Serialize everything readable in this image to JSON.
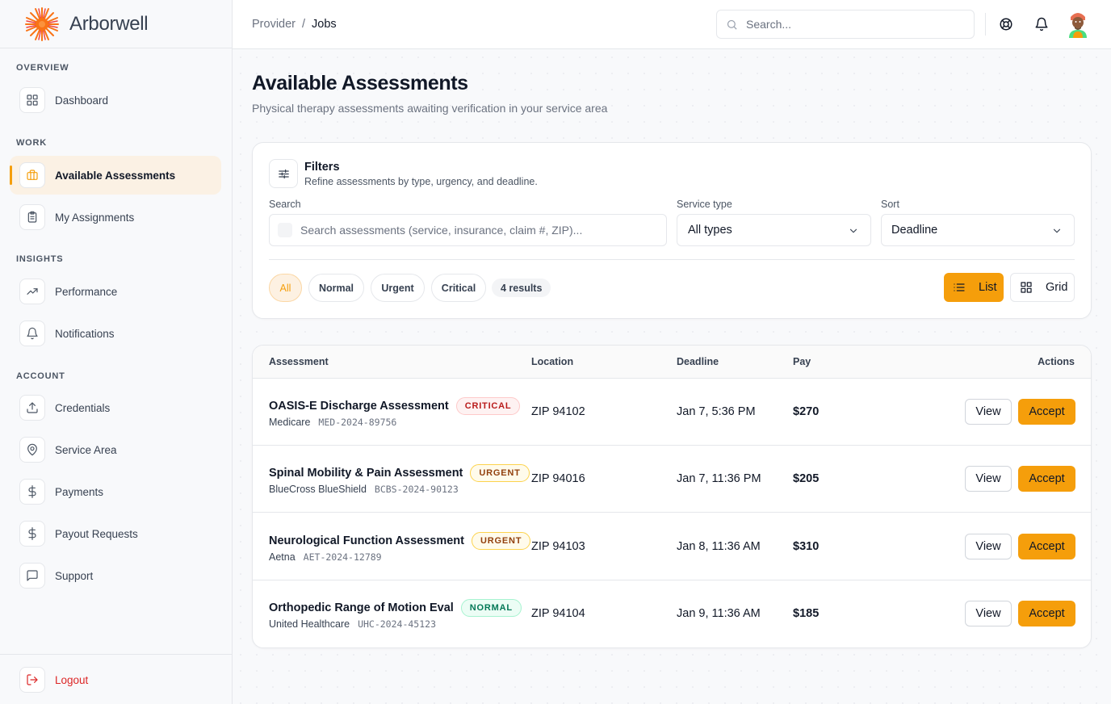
{
  "brand": {
    "name": "Arborwell"
  },
  "sidebar": {
    "sections": [
      "OVERVIEW",
      "WORK",
      "INSIGHTS",
      "ACCOUNT"
    ],
    "items": [
      {
        "label": "Dashboard",
        "icon": "grid-icon"
      },
      {
        "label": "Available Assessments",
        "icon": "briefcase-icon",
        "active": true
      },
      {
        "label": "My Assignments",
        "icon": "clipboard-icon"
      },
      {
        "label": "Performance",
        "icon": "trending-up-icon"
      },
      {
        "label": "Notifications",
        "icon": "bell-icon"
      },
      {
        "label": "Credentials",
        "icon": "upload-icon"
      },
      {
        "label": "Service Area",
        "icon": "map-pin-icon"
      },
      {
        "label": "Payments",
        "icon": "dollar-icon"
      },
      {
        "label": "Payout Requests",
        "icon": "dollar-icon"
      },
      {
        "label": "Support",
        "icon": "message-icon"
      }
    ],
    "logout": "Logout"
  },
  "topbar": {
    "breadcrumb": [
      "Provider",
      "Jobs"
    ],
    "separator": "/",
    "search_placeholder": "Search..."
  },
  "page": {
    "title": "Available Assessments",
    "subtitle": "Physical therapy assessments awaiting verification in your service area"
  },
  "filters": {
    "title": "Filters",
    "description": "Refine assessments by type, urgency, and deadline.",
    "search_label": "Search",
    "search_placeholder": "Search assessments (service, insurance, claim #, ZIP)...",
    "service_type_label": "Service type",
    "service_type_value": "All types",
    "sort_label": "Sort",
    "sort_value": "Deadline",
    "pills": [
      "All",
      "Normal",
      "Urgent",
      "Critical"
    ],
    "active_pill": "All",
    "results": "4 results",
    "view_list": "List",
    "view_grid": "Grid"
  },
  "table": {
    "headers": [
      "Assessment",
      "Location",
      "Deadline",
      "Pay",
      "Actions"
    ],
    "rows": [
      {
        "title": "OASIS-E Discharge Assessment",
        "badge": "CRITICAL",
        "level": "critical",
        "insurer": "Medicare",
        "claim": "MED-2024-89756",
        "location": "ZIP 94102",
        "deadline": "Jan 7, 5:36 PM",
        "pay": "$270"
      },
      {
        "title": "Spinal Mobility & Pain Assessment",
        "badge": "URGENT",
        "level": "urgent",
        "insurer": "BlueCross BlueShield",
        "claim": "BCBS-2024-90123",
        "location": "ZIP 94016",
        "deadline": "Jan 7, 11:36 PM",
        "pay": "$205"
      },
      {
        "title": "Neurological Function Assessment",
        "badge": "URGENT",
        "level": "urgent",
        "insurer": "Aetna",
        "claim": "AET-2024-12789",
        "location": "ZIP 94103",
        "deadline": "Jan 8, 11:36 AM",
        "pay": "$310"
      },
      {
        "title": "Orthopedic Range of Motion Eval",
        "badge": "NORMAL",
        "level": "normal",
        "insurer": "United Healthcare",
        "claim": "UHC-2024-45123",
        "location": "ZIP 94104",
        "deadline": "Jan 9, 11:36 AM",
        "pay": "$185"
      }
    ],
    "view_label": "View",
    "accept_label": "Accept"
  },
  "colors": {
    "accent": "#f59e0b",
    "danger": "#dc2626"
  }
}
